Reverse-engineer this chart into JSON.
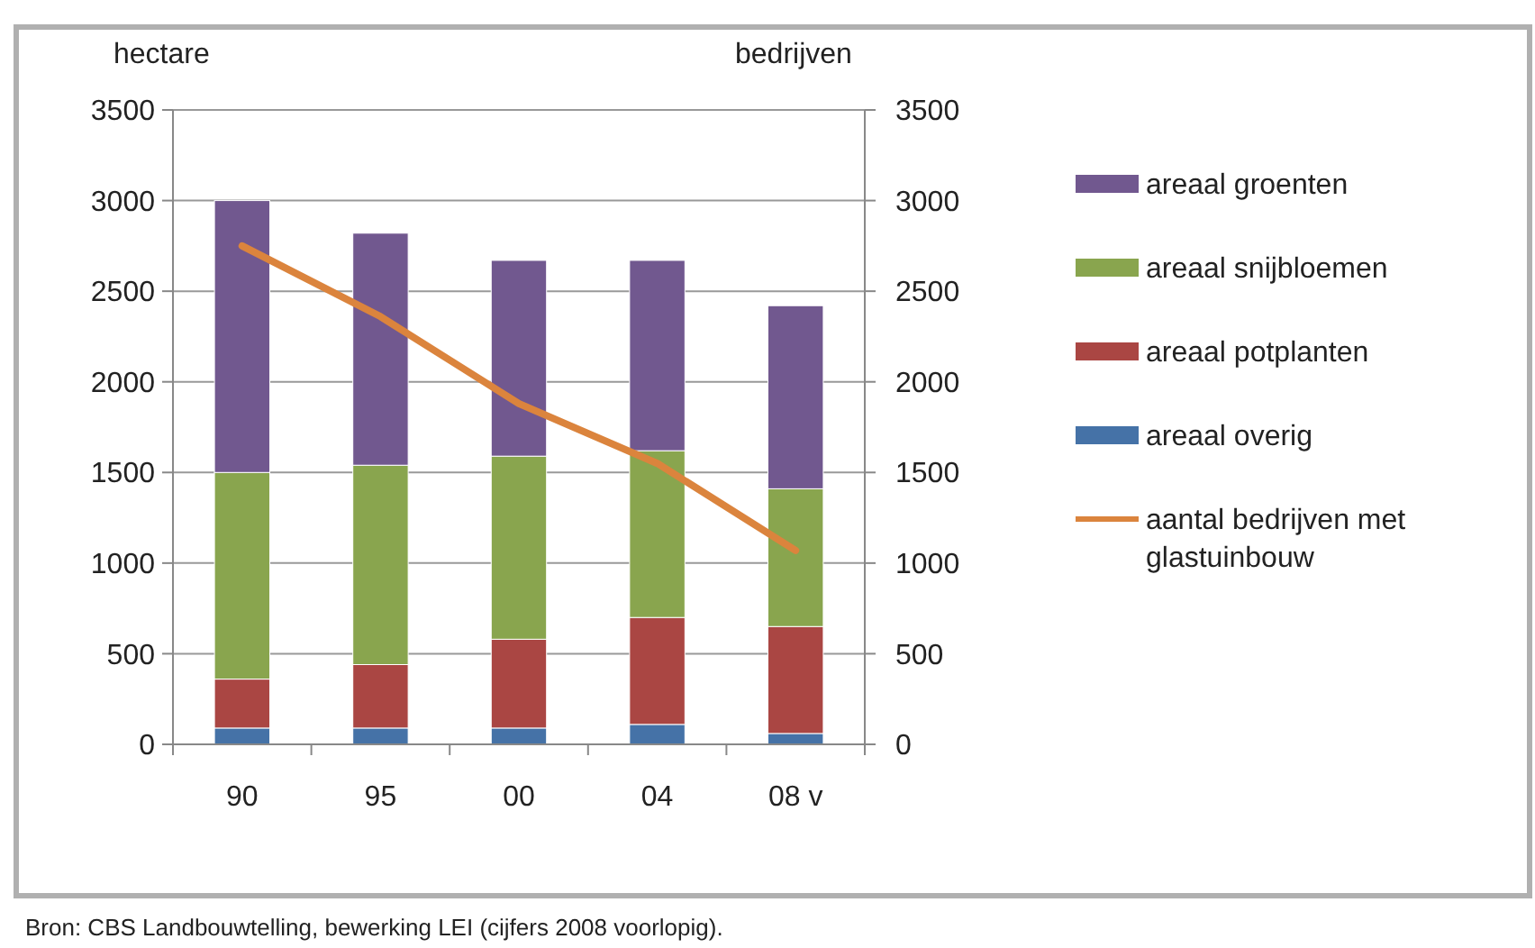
{
  "chart_data": {
    "type": "bar",
    "stacked": true,
    "ylabel": "hectare",
    "y2label": "bedrijven",
    "categories": [
      "90",
      "95",
      "00",
      "04",
      "08 v"
    ],
    "series": [
      {
        "name": "areaal overig",
        "color": "#4572a7",
        "values": [
          90,
          90,
          90,
          110,
          60
        ]
      },
      {
        "name": "areaal potplanten",
        "color": "#aa4643",
        "values": [
          270,
          350,
          490,
          590,
          590
        ]
      },
      {
        "name": "areaal snijbloemen",
        "color": "#89a54e",
        "values": [
          1140,
          1100,
          1010,
          920,
          760
        ]
      },
      {
        "name": "areaal groenten",
        "color": "#71588f",
        "values": [
          1500,
          1280,
          1080,
          1050,
          1010
        ]
      },
      {
        "name": "aantal bedrijven met glastuinbouw",
        "type": "line",
        "axis": "y2",
        "color": "#db843d",
        "values": [
          2750,
          2360,
          1880,
          1550,
          1070
        ]
      }
    ],
    "ylim": [
      0,
      3500
    ],
    "yticks": [
      0,
      500,
      1000,
      1500,
      2000,
      2500,
      3000,
      3500
    ],
    "y2lim": [
      0,
      3500
    ],
    "y2ticks": [
      0,
      500,
      1000,
      1500,
      2000,
      2500,
      3000,
      3500
    ],
    "grid": "y",
    "legend": "right",
    "marker": "none",
    "line_style": "solid",
    "annotations": [
      "Bron: CBS Landbouwtelling, bewerking LEI (cijfers 2008 voorlopig)."
    ]
  }
}
